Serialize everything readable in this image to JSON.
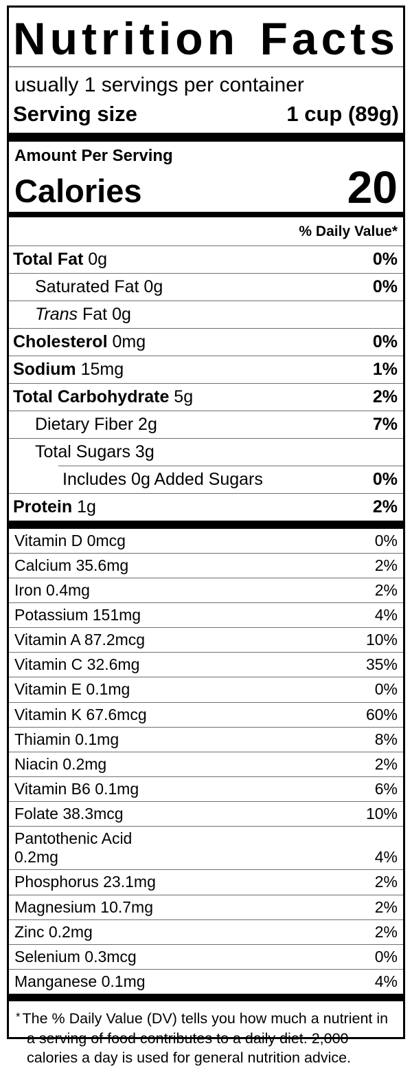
{
  "colors": {
    "bar": "#000000",
    "divider": "#6f6f6f",
    "text": "#000000",
    "background": "#ffffff"
  },
  "label": {
    "title": "Nutrition Facts",
    "servings_per_container": "usually 1 servings per container",
    "serving_size": {
      "label": "Serving size",
      "value": "1 cup (89g)"
    },
    "amount_per_serving": "Amount Per Serving",
    "calories": {
      "label": "Calories",
      "value": "20"
    },
    "daily_value_header": "% Daily Value*",
    "nutrients": [
      {
        "parts": [
          {
            "text": "Total Fat",
            "bold": true
          },
          {
            "text": " 0g"
          }
        ],
        "dv": "0%",
        "dv_bold": true,
        "indent": 0
      },
      {
        "parts": [
          {
            "text": "Saturated Fat 0g"
          }
        ],
        "dv": "0%",
        "dv_bold": true,
        "indent": 1
      },
      {
        "parts": [
          {
            "text": "Trans",
            "italic": true
          },
          {
            "text": " Fat 0g"
          }
        ],
        "dv": "",
        "indent": 1
      },
      {
        "parts": [
          {
            "text": "Cholesterol",
            "bold": true
          },
          {
            "text": " 0mg"
          }
        ],
        "dv": "0%",
        "dv_bold": true,
        "indent": 0
      },
      {
        "parts": [
          {
            "text": "Sodium",
            "bold": true
          },
          {
            "text": " 15mg"
          }
        ],
        "dv": "1%",
        "dv_bold": true,
        "indent": 0
      },
      {
        "parts": [
          {
            "text": "Total Carbohydrate",
            "bold": true
          },
          {
            "text": " 5g"
          }
        ],
        "dv": "2%",
        "dv_bold": true,
        "indent": 0
      },
      {
        "parts": [
          {
            "text": "Dietary Fiber 2g"
          }
        ],
        "dv": "7%",
        "dv_bold": true,
        "indent": 1
      },
      {
        "parts": [
          {
            "text": "Total Sugars 3g"
          }
        ],
        "dv": "",
        "indent": 1
      },
      {
        "parts": [
          {
            "text": "Includes 0g Added Sugars"
          }
        ],
        "dv": "0%",
        "dv_bold": true,
        "indent": 2,
        "divider_indent": true
      },
      {
        "parts": [
          {
            "text": "Protein",
            "bold": true
          },
          {
            "text": " 1g"
          }
        ],
        "dv": "2%",
        "dv_bold": true,
        "indent": 0
      }
    ],
    "micronutrients": [
      {
        "parts": [
          {
            "text": "Vitamin D 0mcg"
          }
        ],
        "dv": "0%"
      },
      {
        "parts": [
          {
            "text": "Calcium 35.6mg"
          }
        ],
        "dv": "2%"
      },
      {
        "parts": [
          {
            "text": "Iron 0.4mg"
          }
        ],
        "dv": "2%"
      },
      {
        "parts": [
          {
            "text": "Potassium 151mg"
          }
        ],
        "dv": "4%"
      },
      {
        "parts": [
          {
            "text": "Vitamin A 87.2mcg"
          }
        ],
        "dv": "10%"
      },
      {
        "parts": [
          {
            "text": "Vitamin C 32.6mg"
          }
        ],
        "dv": "35%"
      },
      {
        "parts": [
          {
            "text": "Vitamin E 0.1mg"
          }
        ],
        "dv": "0%"
      },
      {
        "parts": [
          {
            "text": "Vitamin K 67.6mcg"
          }
        ],
        "dv": "60%"
      },
      {
        "parts": [
          {
            "text": "Thiamin 0.1mg"
          }
        ],
        "dv": "8%"
      },
      {
        "parts": [
          {
            "text": "Niacin 0.2mg"
          }
        ],
        "dv": "2%"
      },
      {
        "parts": [
          {
            "text": "Vitamin B6 0.1mg"
          }
        ],
        "dv": "6%"
      },
      {
        "parts": [
          {
            "text": "Folate 38.3mcg"
          }
        ],
        "dv": "10%"
      },
      {
        "parts": [
          {
            "text": "Pantothenic Acid\n0.2mg"
          }
        ],
        "dv": "4%"
      },
      {
        "parts": [
          {
            "text": "Phosphorus 23.1mg"
          }
        ],
        "dv": "2%"
      },
      {
        "parts": [
          {
            "text": "Magnesium 10.7mg"
          }
        ],
        "dv": "2%"
      },
      {
        "parts": [
          {
            "text": "Zinc 0.2mg"
          }
        ],
        "dv": "2%"
      },
      {
        "parts": [
          {
            "text": "Selenium 0.3mcg"
          }
        ],
        "dv": "0%"
      },
      {
        "parts": [
          {
            "text": "Manganese 0.1mg"
          }
        ],
        "dv": "4%"
      }
    ],
    "footnote": {
      "marker": "*",
      "text": "The % Daily Value (DV) tells you how much a nutrient in a serving of food contributes to a daily diet. 2,000 calories a day is used for general nutrition advice."
    }
  }
}
